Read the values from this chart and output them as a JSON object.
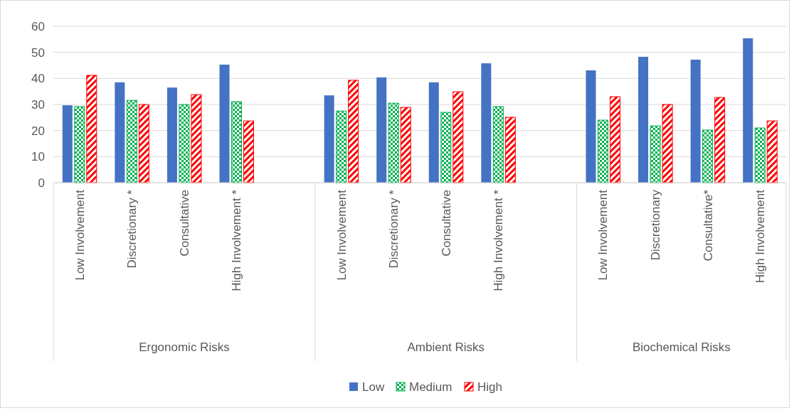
{
  "chart_data": {
    "type": "bar",
    "categories": [
      "Low Involvement",
      "Discretionary *",
      "Consultative",
      "High Involvement *",
      null,
      "Low Involvement",
      "Discretionary *",
      "Consultative",
      "High Involvement *",
      null,
      "Low Involvement",
      "Discretionary",
      "Consultative*",
      "High Involvement"
    ],
    "series": [
      {
        "name": "Low",
        "color": "#4472c4",
        "values": [
          29.7,
          38.5,
          36.5,
          45.3,
          null,
          33.5,
          40.4,
          38.5,
          45.8,
          null,
          43.1,
          48.3,
          47.2,
          55.4
        ]
      },
      {
        "name": "Medium",
        "color": "#00b050",
        "values": [
          29.2,
          31.6,
          30.0,
          31.1,
          null,
          27.5,
          30.5,
          27.0,
          29.2,
          null,
          24.0,
          21.8,
          20.2,
          21.0
        ]
      },
      {
        "name": "High",
        "color": "#ff0000",
        "values": [
          41.2,
          30.0,
          33.8,
          23.7,
          null,
          39.3,
          28.9,
          34.9,
          25.1,
          null,
          33.0,
          30.0,
          32.7,
          23.7
        ]
      }
    ],
    "ylim": [
      0,
      60
    ],
    "yticks": [
      0,
      10,
      20,
      30,
      40,
      50,
      60
    ],
    "grid": "y",
    "legend": "bottom",
    "annotations": [
      "Ergonomic Risks",
      "Ambient Risks",
      "Biochemical Risks"
    ]
  }
}
